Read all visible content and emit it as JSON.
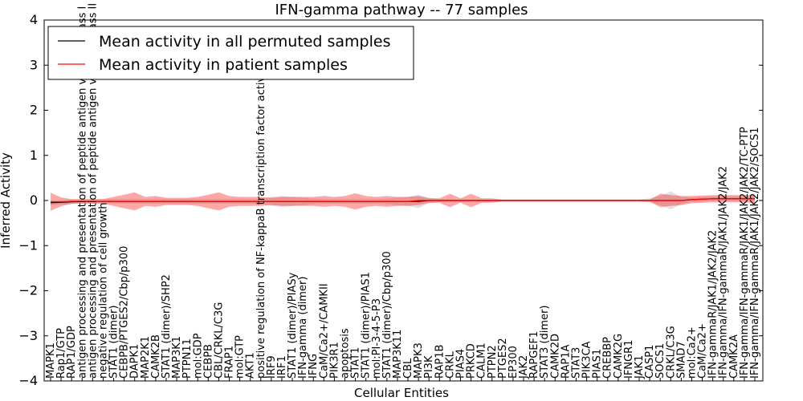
{
  "chart_data": {
    "type": "line",
    "title": "IFN-gamma pathway -- 77 samples",
    "xlabel": "Cellular Entities",
    "ylabel": "Inferred Activity",
    "ylim": [
      -4,
      4
    ],
    "yticks": [
      -4,
      -3,
      -2,
      -1,
      0,
      1,
      2,
      3,
      4
    ],
    "legend": {
      "position": "top-left",
      "entries": [
        {
          "label": "Mean activity in all permuted samples",
          "color": "#000000"
        },
        {
          "label": "Mean activity in patient samples",
          "color": "#ff0000"
        }
      ]
    },
    "categories": [
      "MAPK1",
      "Rap1/GTP",
      "RAP1/GDP",
      "antigen processing and presentation of peptide antigen via MHC class I",
      "antigen processing and presentation of peptide antigen via MHC class II",
      "negative regulation of cell growth",
      "STAT1 (dimer)",
      "CEBPB/PTGES2/Cbp/p300",
      "DAPK1",
      "MAP2K1",
      "CAMK2B",
      "STAT1 (dimer)/SHP2",
      "MAP3K1",
      "PTPN11",
      "mol:GDP",
      "CEBPB",
      "CBL/CRKL/C3G",
      "FRAP1",
      "mol:GTP",
      "AKT1",
      "positive regulation of NF-kappaB transcription factor activity",
      "IRF9",
      "IRF1",
      "STAT1 (dimer)/PIASy",
      "IFN-gamma (dimer)",
      "IFNG",
      "CaM/Ca2+/CAMKII",
      "PIK3R1",
      "apoptosis",
      "STAT1",
      "STAT1 (dimer)/PIAS1",
      "mol:PI-3-4-5-P3",
      "STAT1 (dimer)/Cbp/p300",
      "MAP3K11",
      "CBL",
      "MAPK3",
      "PI3K",
      "RAP1B",
      "CRKL",
      "PIAS4",
      "PRKCD",
      "CALM1",
      "PTPN2",
      "PTGES2",
      "EP300",
      "JAK2",
      "RAPGEF1",
      "STAT3 (dimer)",
      "CAMK2D",
      "RAP1A",
      "STAT3",
      "PIK3CA",
      "PIAS1",
      "CREBBP",
      "CAMK2G",
      "IFNGR1",
      "JAK1",
      "CASP1",
      "SOCS1",
      "CRKL/C3G",
      "SMAD7",
      "mol:Ca2+",
      "CaM/Ca2+",
      "IFN-gammaR/JAK1/JAK2/JAK2",
      "IFN-gamma/IFN-gammaR/JAK1/JAK2/JAK2",
      "CAMK2A",
      "IFN-gamma/IFN-gammaR/JAK1/JAK2/JAK2/TC-PTP",
      "IFN-gamma/IFN-gammaR/JAK1/JAK2/JAK2/SOCS1"
    ],
    "series": [
      {
        "name": "Mean activity in all permuted samples",
        "color": "#000000",
        "values": [
          -0.05,
          -0.04,
          -0.03,
          -0.02,
          -0.02,
          -0.02,
          -0.02,
          -0.02,
          -0.02,
          -0.02,
          -0.02,
          -0.02,
          -0.02,
          -0.02,
          -0.02,
          -0.02,
          -0.02,
          -0.02,
          -0.02,
          -0.02,
          -0.02,
          -0.02,
          -0.02,
          -0.02,
          -0.02,
          -0.02,
          -0.02,
          -0.02,
          -0.02,
          -0.02,
          -0.02,
          -0.02,
          -0.02,
          -0.02,
          -0.02,
          -0.02,
          0.0,
          0.0,
          0.0,
          0.0,
          0.0,
          0.0,
          0.0,
          0.0,
          0.0,
          0.0,
          0.0,
          0.0,
          0.0,
          0.0,
          0.0,
          0.0,
          0.0,
          0.0,
          0.0,
          0.0,
          0.0,
          0.0,
          0.0,
          0.0,
          0.0,
          0.02,
          0.03,
          0.04,
          0.04,
          0.04,
          0.04,
          0.04
        ],
        "band": [
          0.05,
          0.05,
          0.05,
          0.05,
          0.05,
          0.05,
          0.05,
          0.05,
          0.05,
          0.05,
          0.05,
          0.05,
          0.05,
          0.05,
          0.05,
          0.05,
          0.05,
          0.05,
          0.05,
          0.05,
          0.05,
          0.1,
          0.12,
          0.1,
          0.08,
          0.06,
          0.05,
          0.05,
          0.05,
          0.05,
          0.05,
          0.05,
          0.06,
          0.08,
          0.1,
          0.15,
          0.06,
          0.03,
          0.02,
          0.02,
          0.02,
          0.02,
          0.02,
          0.02,
          0.02,
          0.02,
          0.02,
          0.02,
          0.02,
          0.02,
          0.02,
          0.02,
          0.02,
          0.02,
          0.02,
          0.02,
          0.02,
          0.05,
          0.1,
          0.2,
          0.08,
          0.05,
          0.05,
          0.05,
          0.05,
          0.05,
          0.05,
          0.05
        ]
      },
      {
        "name": "Mean activity in patient samples",
        "color": "#ff0000",
        "values": [
          -0.03,
          -0.03,
          -0.02,
          -0.02,
          -0.02,
          -0.02,
          -0.02,
          -0.02,
          -0.02,
          -0.02,
          -0.02,
          -0.02,
          -0.02,
          -0.02,
          -0.02,
          -0.02,
          -0.02,
          -0.02,
          -0.02,
          -0.02,
          -0.02,
          -0.02,
          -0.02,
          -0.02,
          -0.02,
          -0.02,
          -0.02,
          -0.02,
          -0.02,
          -0.02,
          -0.02,
          -0.02,
          -0.02,
          -0.02,
          -0.02,
          0.0,
          0.0,
          0.0,
          0.0,
          0.0,
          0.0,
          0.0,
          0.0,
          0.0,
          0.0,
          0.0,
          0.0,
          0.0,
          0.0,
          0.0,
          0.0,
          0.0,
          0.0,
          0.0,
          0.0,
          0.0,
          0.0,
          0.0,
          0.0,
          0.0,
          0.0,
          0.02,
          0.03,
          0.04,
          0.04,
          0.04,
          0.04,
          0.04
        ],
        "band": [
          0.2,
          0.1,
          0.05,
          0.05,
          0.05,
          0.05,
          0.1,
          0.15,
          0.2,
          0.1,
          0.12,
          0.08,
          0.08,
          0.08,
          0.1,
          0.15,
          0.2,
          0.12,
          0.1,
          0.1,
          0.1,
          0.08,
          0.1,
          0.1,
          0.1,
          0.1,
          0.12,
          0.1,
          0.12,
          0.18,
          0.12,
          0.1,
          0.12,
          0.1,
          0.1,
          0.1,
          0.05,
          0.05,
          0.15,
          0.05,
          0.15,
          0.05,
          0.05,
          0.02,
          0.02,
          0.02,
          0.02,
          0.02,
          0.02,
          0.02,
          0.02,
          0.02,
          0.02,
          0.02,
          0.02,
          0.02,
          0.02,
          0.02,
          0.15,
          0.12,
          0.1,
          0.08,
          0.08,
          0.08,
          0.08,
          0.08,
          0.08,
          0.1
        ]
      }
    ]
  }
}
